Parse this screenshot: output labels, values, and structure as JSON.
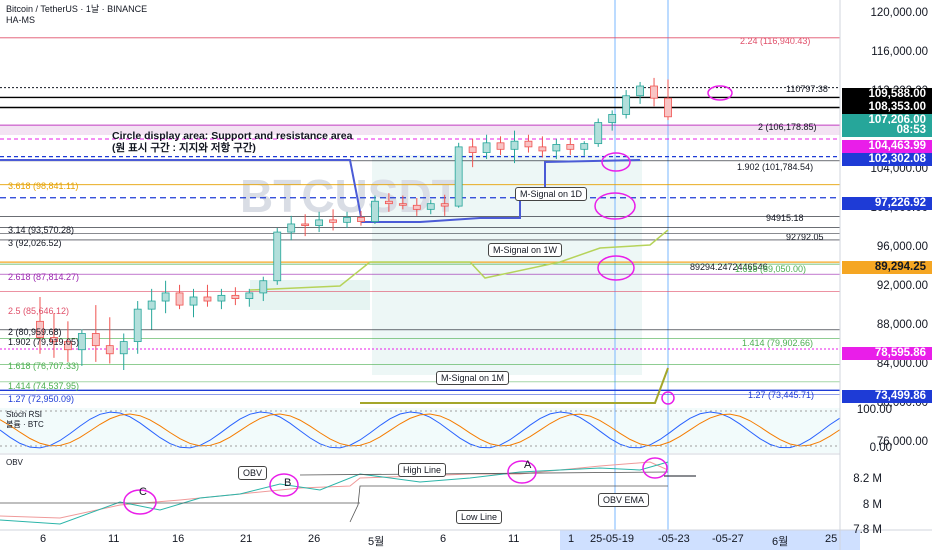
{
  "header": {
    "symbol": "Bitcoin / TetherUS · 1날 · BINANCE",
    "indicator": "HA-MS"
  },
  "watermark": "BTCUSDT",
  "circle_note": {
    "line1": "Circle display area: Support and resistance area",
    "line2": "(원 표시 구간 : 지지와 저항 구간)"
  },
  "price_axis": [
    "120,000.00",
    "116,000.00",
    "112,000.00",
    "108,000.00",
    "104,000.00",
    "100,000.00",
    "96,000.00",
    "92,000.00",
    "88,000.00",
    "84,000.00",
    "80,000.00",
    "76,000.00"
  ],
  "price_tags": [
    {
      "text": "109,588.00",
      "bg": "#000000",
      "fg": "#ffffff"
    },
    {
      "text": "108,353.00",
      "bg": "#000000",
      "fg": "#ffffff"
    },
    {
      "text": "107,206.00",
      "bg": "#26a69a",
      "fg": "#ffffff"
    },
    {
      "text": "08:53",
      "bg": "#26a69a",
      "fg": "#ffffff"
    },
    {
      "text": "104,463.99",
      "bg": "#e91ee9",
      "fg": "#ffffff"
    },
    {
      "text": "102,302.08",
      "bg": "#1e3bd6",
      "fg": "#ffffff"
    },
    {
      "text": "97,226.92",
      "bg": "#1e3bd6",
      "fg": "#ffffff"
    },
    {
      "text": "89,294.25",
      "bg": "#f5a623",
      "fg": "#131722"
    },
    {
      "text": "78,595.86",
      "bg": "#e91ee9",
      "fg": "#ffffff"
    },
    {
      "text": "73,499.86",
      "bg": "#1e3bd6",
      "fg": "#ffffff"
    }
  ],
  "fib_labels": [
    {
      "text": "2.24 (116,940.43)",
      "color": "#e0506a"
    },
    {
      "text": "110797.38",
      "color": "#131722"
    },
    {
      "text": "2 (106,178.85)",
      "color": "#131722"
    },
    {
      "text": "1.902 (101,784.54)",
      "color": "#131722"
    },
    {
      "text": "3.618 (98,841.11)",
      "color": "#e6a100"
    },
    {
      "text": "94915.18",
      "color": "#131722"
    },
    {
      "text": "3.14 (93,570.28)",
      "color": "#131722"
    },
    {
      "text": "92792.05",
      "color": "#131722"
    },
    {
      "text": "3 (92,026.52)",
      "color": "#131722"
    },
    {
      "text": "89294.2472446546",
      "color": "#131722"
    },
    {
      "text": "1.618 (89,050.00)",
      "color": "#4caf50"
    },
    {
      "text": "2.618 (87,814.27)",
      "color": "#9c27b0"
    },
    {
      "text": "2.5 (85,646.12)",
      "color": "#e0506a"
    },
    {
      "text": "2 (80,959.68)",
      "color": "#131722"
    },
    {
      "text": "1.414 (79,902.66)",
      "color": "#4caf50"
    },
    {
      "text": "1.902 (79,919.05)",
      "color": "#131722"
    },
    {
      "text": "1.618 (76,707.33)",
      "color": "#4caf50"
    },
    {
      "text": "1.414 (74,537.95)",
      "color": "#4caf50"
    },
    {
      "text": "1.27 (72,950.09)",
      "color": "#1e3bd6"
    },
    {
      "text": "1.27 (73,445.71)",
      "color": "#1e3bd6"
    }
  ],
  "callouts": {
    "m_signal_1d": "M-Signal on 1D",
    "m_signal_1w": "M-Signal on 1W",
    "m_signal_1m": "M-Signal on 1M",
    "obv": "OBV",
    "high_line": "High Line",
    "low_line": "Low Line",
    "obv_ema": "OBV EMA",
    "a_mark": "A",
    "b_mark": "B",
    "c_mark": "C"
  },
  "stoch": {
    "title": "Stoch RSI",
    "subtitle": "볼륨 · BTC",
    "axis": [
      "100.00",
      "0.00"
    ]
  },
  "obv_pane": {
    "title": "OBV",
    "axis": [
      "8.2 M",
      "8 M",
      "7.8 M"
    ]
  },
  "x_axis": {
    "labels": [
      "6",
      "11",
      "16",
      "21",
      "26",
      "5월",
      "6",
      "11",
      "1",
      "25-05-19",
      "-05-23",
      "-05-27",
      "6월",
      "25"
    ]
  },
  "colors": {
    "up": "#26a69a",
    "down": "#ef5350",
    "accent_magenta": "#e91ee9",
    "accent_blue": "#1e3bd6",
    "msignal_1d": "#4b5bd6",
    "msignal_1w": "#b6d35a",
    "msignal_1m": "#a4a62a"
  },
  "chart_data": {
    "type": "candlestick",
    "price_range": [
      72000,
      121000
    ],
    "last_price": 107206.0,
    "candles": [
      {
        "o": 82000,
        "h": 85000,
        "l": 78000,
        "c": 80000
      },
      {
        "o": 80000,
        "h": 83000,
        "l": 77500,
        "c": 79500
      },
      {
        "o": 79500,
        "h": 82000,
        "l": 77000,
        "c": 78500
      },
      {
        "o": 78500,
        "h": 81000,
        "l": 76500,
        "c": 80500
      },
      {
        "o": 80500,
        "h": 84000,
        "l": 77000,
        "c": 79000
      },
      {
        "o": 79000,
        "h": 82500,
        "l": 76800,
        "c": 78000
      },
      {
        "o": 78000,
        "h": 80500,
        "l": 76000,
        "c": 79500
      },
      {
        "o": 79500,
        "h": 84500,
        "l": 78000,
        "c": 83500
      },
      {
        "o": 83500,
        "h": 86000,
        "l": 81000,
        "c": 84500
      },
      {
        "o": 84500,
        "h": 87000,
        "l": 83000,
        "c": 85500
      },
      {
        "o": 85500,
        "h": 86500,
        "l": 83500,
        "c": 84000
      },
      {
        "o": 84000,
        "h": 86000,
        "l": 82500,
        "c": 85000
      },
      {
        "o": 85000,
        "h": 86500,
        "l": 83800,
        "c": 84500
      },
      {
        "o": 84500,
        "h": 86000,
        "l": 83500,
        "c": 85200
      },
      {
        "o": 85200,
        "h": 86200,
        "l": 84000,
        "c": 84800
      },
      {
        "o": 84800,
        "h": 86000,
        "l": 83800,
        "c": 85500
      },
      {
        "o": 85500,
        "h": 87500,
        "l": 84500,
        "c": 87000
      },
      {
        "o": 87000,
        "h": 93500,
        "l": 86500,
        "c": 93000
      },
      {
        "o": 93000,
        "h": 95000,
        "l": 92000,
        "c": 94000
      },
      {
        "o": 94000,
        "h": 95200,
        "l": 92500,
        "c": 93800
      },
      {
        "o": 93800,
        "h": 95500,
        "l": 93000,
        "c": 94500
      },
      {
        "o": 94500,
        "h": 95800,
        "l": 93200,
        "c": 94200
      },
      {
        "o": 94200,
        "h": 95500,
        "l": 93500,
        "c": 94800
      },
      {
        "o": 94800,
        "h": 95600,
        "l": 93800,
        "c": 94300
      },
      {
        "o": 94300,
        "h": 97500,
        "l": 94000,
        "c": 96800
      },
      {
        "o": 96800,
        "h": 97800,
        "l": 95500,
        "c": 96500
      },
      {
        "o": 96500,
        "h": 97500,
        "l": 95800,
        "c": 96300
      },
      {
        "o": 96300,
        "h": 97200,
        "l": 95000,
        "c": 95800
      },
      {
        "o": 95800,
        "h": 97000,
        "l": 95200,
        "c": 96500
      },
      {
        "o": 96500,
        "h": 97600,
        "l": 95000,
        "c": 96200
      },
      {
        "o": 96200,
        "h": 104000,
        "l": 96000,
        "c": 103500
      },
      {
        "o": 103500,
        "h": 104500,
        "l": 101000,
        "c": 102800
      },
      {
        "o": 102800,
        "h": 105000,
        "l": 102000,
        "c": 104000
      },
      {
        "o": 104000,
        "h": 104800,
        "l": 102500,
        "c": 103200
      },
      {
        "o": 103200,
        "h": 105500,
        "l": 101500,
        "c": 104200
      },
      {
        "o": 104200,
        "h": 105000,
        "l": 102800,
        "c": 103500
      },
      {
        "o": 103500,
        "h": 104800,
        "l": 102200,
        "c": 103000
      },
      {
        "o": 103000,
        "h": 104500,
        "l": 102000,
        "c": 103800
      },
      {
        "o": 103800,
        "h": 104600,
        "l": 102500,
        "c": 103200
      },
      {
        "o": 103200,
        "h": 104200,
        "l": 102400,
        "c": 103900
      },
      {
        "o": 103900,
        "h": 107000,
        "l": 103500,
        "c": 106500
      },
      {
        "o": 106500,
        "h": 108000,
        "l": 105500,
        "c": 107500
      },
      {
        "o": 107500,
        "h": 110500,
        "l": 107000,
        "c": 109800
      },
      {
        "o": 109800,
        "h": 111500,
        "l": 108800,
        "c": 111000
      },
      {
        "o": 111000,
        "h": 112000,
        "l": 108500,
        "c": 109500
      },
      {
        "o": 109500,
        "h": 111800,
        "l": 106800,
        "c": 107206
      }
    ]
  }
}
